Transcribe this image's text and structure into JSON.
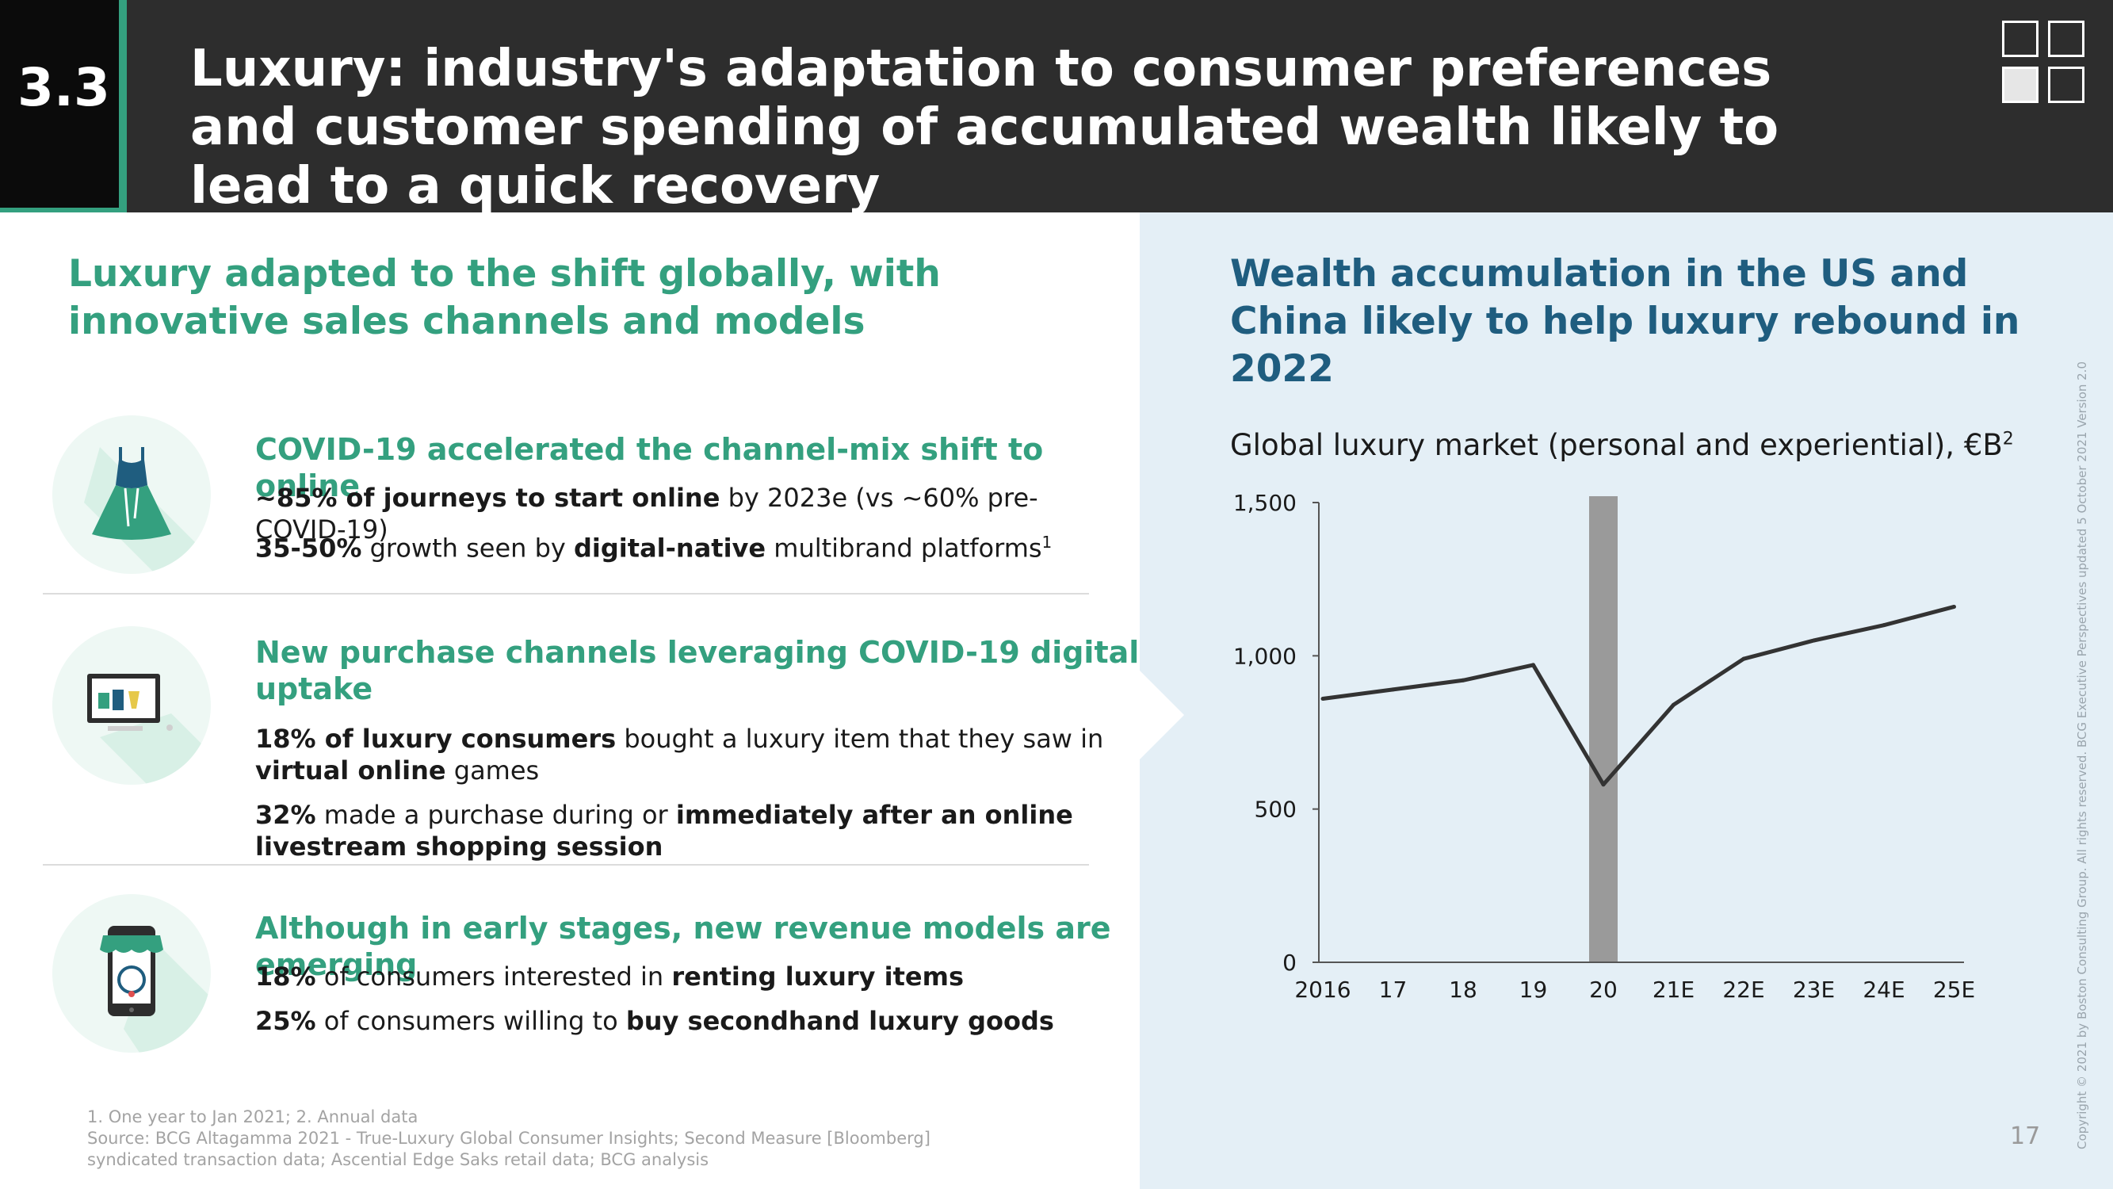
{
  "header": {
    "section_number": "3.3",
    "title": "Luxury: industry's adaptation to consumer preferences and customer spending of accumulated wealth likely to lead to a quick recovery"
  },
  "left": {
    "heading": "Luxury adapted to the shift globally, with innovative sales channels and models",
    "items": [
      {
        "icon": "dress-icon",
        "title": "COVID-19 accelerated the channel-mix shift to online",
        "lines": [
          {
            "b1": "~85% of journeys to start online",
            "t1": " by 2023e (vs ~60% pre-COVID-19)",
            "b2": "",
            "t2": "",
            "sup": ""
          },
          {
            "b1": "35-50%",
            "t1": " growth seen by ",
            "b2": "digital-native",
            "t2": " multibrand platforms",
            "sup": "1"
          }
        ]
      },
      {
        "icon": "computer-shop-icon",
        "title": "New purchase channels leveraging COVID-19 digital uptake",
        "lines": [
          {
            "b1": "18% of luxury consumers",
            "t1": " bought a luxury item that they saw in ",
            "b2": "virtual online",
            "t2": " games",
            "sup": ""
          },
          {
            "b1": "32%",
            "t1": " made a purchase during or ",
            "b2": "immediately after an online livestream shopping session",
            "t2": "",
            "sup": ""
          }
        ]
      },
      {
        "icon": "mobile-shop-icon",
        "title": "Although in early stages, new revenue models are emerging",
        "lines": [
          {
            "b1": "18%",
            "t1": " of consumers interested in ",
            "b2": "renting luxury items",
            "t2": "",
            "sup": ""
          },
          {
            "b1": "25%",
            "t1": " of consumers willing to ",
            "b2": "buy secondhand luxury goods",
            "t2": "",
            "sup": ""
          }
        ]
      }
    ]
  },
  "right": {
    "heading": "Wealth accumulation in the US and China likely to help luxury rebound in 2022",
    "chart_title": "Global luxury market (personal and experiential), €B",
    "chart_title_sup": "2"
  },
  "chart_data": {
    "type": "line",
    "title": "Global luxury market (personal and experiential), €B",
    "x": [
      "2016",
      "17",
      "18",
      "19",
      "20",
      "21E",
      "22E",
      "23E",
      "24E",
      "25E"
    ],
    "series": [
      {
        "values": [
          860,
          890,
          920,
          970,
          580,
          840,
          990,
          1050,
          1100,
          1160
        ],
        "color": "#333333"
      }
    ],
    "highlight_category": "20",
    "highlight_color": "#9a9a9a",
    "yticks": [
      0,
      500,
      1000,
      1500
    ],
    "ytick_labels": [
      "0",
      "500",
      "1,000",
      "1,500"
    ],
    "ylim": [
      0,
      1500
    ],
    "grid": false,
    "legend": "none"
  },
  "footnotes": {
    "line1": "1. One year to Jan 2021; 2. Annual data",
    "line2": "Source: BCG Altagamma 2021 - True-Luxury Global Consumer Insights; Second Measure [Bloomberg]",
    "line3": "syndicated transaction data; Ascential Edge Saks retail data; BCG analysis"
  },
  "page_number": "17",
  "copyright": "Copyright © 2021 by Boston Consulting Group. All rights reserved. BCG Executive Perspectives updated 5 October 2021 Version 2.0",
  "colors": {
    "accent_green": "#34a07f",
    "accent_blue": "#1f5d7f",
    "header_bg": "#2d2d2d",
    "panel_bg": "#e4eff6"
  }
}
